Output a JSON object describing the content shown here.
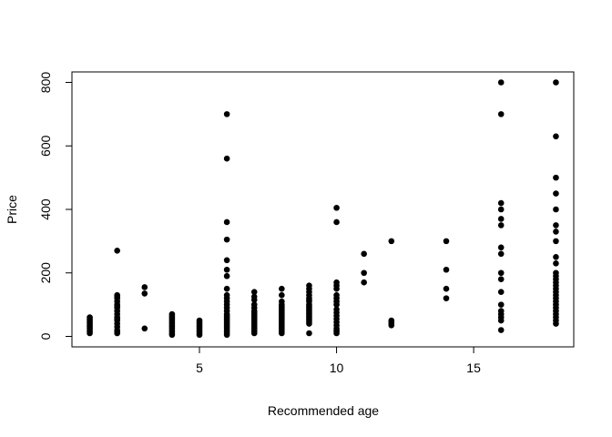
{
  "chart_data": {
    "type": "scatter",
    "title": "",
    "xlabel": "Recommended age",
    "ylabel": "Price",
    "xlim": [
      0.35,
      18.65
    ],
    "ylim": [
      -33,
      833
    ],
    "xticks": [
      5,
      10,
      15
    ],
    "yticks": [
      0,
      200,
      400,
      600,
      800
    ],
    "grid": false,
    "marker_color": "#000000",
    "points": [
      {
        "x": 1,
        "y": 10
      },
      {
        "x": 1,
        "y": 15
      },
      {
        "x": 1,
        "y": 20
      },
      {
        "x": 1,
        "y": 25
      },
      {
        "x": 1,
        "y": 30
      },
      {
        "x": 1,
        "y": 35
      },
      {
        "x": 1,
        "y": 40
      },
      {
        "x": 1,
        "y": 45
      },
      {
        "x": 1,
        "y": 50
      },
      {
        "x": 1,
        "y": 55
      },
      {
        "x": 1,
        "y": 60
      },
      {
        "x": 2,
        "y": 10
      },
      {
        "x": 2,
        "y": 15
      },
      {
        "x": 2,
        "y": 20
      },
      {
        "x": 2,
        "y": 30
      },
      {
        "x": 2,
        "y": 40
      },
      {
        "x": 2,
        "y": 50
      },
      {
        "x": 2,
        "y": 55
      },
      {
        "x": 2,
        "y": 60
      },
      {
        "x": 2,
        "y": 70
      },
      {
        "x": 2,
        "y": 80
      },
      {
        "x": 2,
        "y": 90
      },
      {
        "x": 2,
        "y": 95
      },
      {
        "x": 2,
        "y": 100
      },
      {
        "x": 2,
        "y": 110
      },
      {
        "x": 2,
        "y": 120
      },
      {
        "x": 2,
        "y": 125
      },
      {
        "x": 2,
        "y": 130
      },
      {
        "x": 2,
        "y": 270
      },
      {
        "x": 3,
        "y": 25
      },
      {
        "x": 3,
        "y": 135
      },
      {
        "x": 3,
        "y": 155
      },
      {
        "x": 4,
        "y": 5
      },
      {
        "x": 4,
        "y": 10
      },
      {
        "x": 4,
        "y": 15
      },
      {
        "x": 4,
        "y": 20
      },
      {
        "x": 4,
        "y": 25
      },
      {
        "x": 4,
        "y": 30
      },
      {
        "x": 4,
        "y": 35
      },
      {
        "x": 4,
        "y": 40
      },
      {
        "x": 4,
        "y": 45
      },
      {
        "x": 4,
        "y": 50
      },
      {
        "x": 4,
        "y": 55
      },
      {
        "x": 4,
        "y": 60
      },
      {
        "x": 4,
        "y": 65
      },
      {
        "x": 4,
        "y": 70
      },
      {
        "x": 5,
        "y": 5
      },
      {
        "x": 5,
        "y": 10
      },
      {
        "x": 5,
        "y": 15
      },
      {
        "x": 5,
        "y": 20
      },
      {
        "x": 5,
        "y": 25
      },
      {
        "x": 5,
        "y": 30
      },
      {
        "x": 5,
        "y": 35
      },
      {
        "x": 5,
        "y": 40
      },
      {
        "x": 5,
        "y": 45
      },
      {
        "x": 5,
        "y": 50
      },
      {
        "x": 6,
        "y": 5
      },
      {
        "x": 6,
        "y": 10
      },
      {
        "x": 6,
        "y": 15
      },
      {
        "x": 6,
        "y": 20
      },
      {
        "x": 6,
        "y": 25
      },
      {
        "x": 6,
        "y": 30
      },
      {
        "x": 6,
        "y": 35
      },
      {
        "x": 6,
        "y": 40
      },
      {
        "x": 6,
        "y": 45
      },
      {
        "x": 6,
        "y": 50
      },
      {
        "x": 6,
        "y": 55
      },
      {
        "x": 6,
        "y": 60
      },
      {
        "x": 6,
        "y": 65
      },
      {
        "x": 6,
        "y": 70
      },
      {
        "x": 6,
        "y": 80
      },
      {
        "x": 6,
        "y": 90
      },
      {
        "x": 6,
        "y": 100
      },
      {
        "x": 6,
        "y": 110
      },
      {
        "x": 6,
        "y": 120
      },
      {
        "x": 6,
        "y": 130
      },
      {
        "x": 6,
        "y": 150
      },
      {
        "x": 6,
        "y": 190
      },
      {
        "x": 6,
        "y": 210
      },
      {
        "x": 6,
        "y": 240
      },
      {
        "x": 6,
        "y": 305
      },
      {
        "x": 6,
        "y": 360
      },
      {
        "x": 6,
        "y": 560
      },
      {
        "x": 6,
        "y": 700
      },
      {
        "x": 7,
        "y": 10
      },
      {
        "x": 7,
        "y": 15
      },
      {
        "x": 7,
        "y": 20
      },
      {
        "x": 7,
        "y": 25
      },
      {
        "x": 7,
        "y": 30
      },
      {
        "x": 7,
        "y": 35
      },
      {
        "x": 7,
        "y": 40
      },
      {
        "x": 7,
        "y": 45
      },
      {
        "x": 7,
        "y": 50
      },
      {
        "x": 7,
        "y": 55
      },
      {
        "x": 7,
        "y": 60
      },
      {
        "x": 7,
        "y": 65
      },
      {
        "x": 7,
        "y": 70
      },
      {
        "x": 7,
        "y": 75
      },
      {
        "x": 7,
        "y": 80
      },
      {
        "x": 7,
        "y": 90
      },
      {
        "x": 7,
        "y": 100
      },
      {
        "x": 7,
        "y": 115
      },
      {
        "x": 7,
        "y": 125
      },
      {
        "x": 7,
        "y": 140
      },
      {
        "x": 8,
        "y": 10
      },
      {
        "x": 8,
        "y": 15
      },
      {
        "x": 8,
        "y": 20
      },
      {
        "x": 8,
        "y": 25
      },
      {
        "x": 8,
        "y": 30
      },
      {
        "x": 8,
        "y": 35
      },
      {
        "x": 8,
        "y": 40
      },
      {
        "x": 8,
        "y": 45
      },
      {
        "x": 8,
        "y": 50
      },
      {
        "x": 8,
        "y": 55
      },
      {
        "x": 8,
        "y": 60
      },
      {
        "x": 8,
        "y": 65
      },
      {
        "x": 8,
        "y": 70
      },
      {
        "x": 8,
        "y": 75
      },
      {
        "x": 8,
        "y": 80
      },
      {
        "x": 8,
        "y": 85
      },
      {
        "x": 8,
        "y": 90
      },
      {
        "x": 8,
        "y": 95
      },
      {
        "x": 8,
        "y": 100
      },
      {
        "x": 8,
        "y": 110
      },
      {
        "x": 8,
        "y": 130
      },
      {
        "x": 8,
        "y": 150
      },
      {
        "x": 9,
        "y": 10
      },
      {
        "x": 9,
        "y": 40
      },
      {
        "x": 9,
        "y": 45
      },
      {
        "x": 9,
        "y": 50
      },
      {
        "x": 9,
        "y": 55
      },
      {
        "x": 9,
        "y": 60
      },
      {
        "x": 9,
        "y": 65
      },
      {
        "x": 9,
        "y": 70
      },
      {
        "x": 9,
        "y": 75
      },
      {
        "x": 9,
        "y": 80
      },
      {
        "x": 9,
        "y": 85
      },
      {
        "x": 9,
        "y": 90
      },
      {
        "x": 9,
        "y": 95
      },
      {
        "x": 9,
        "y": 100
      },
      {
        "x": 9,
        "y": 110
      },
      {
        "x": 9,
        "y": 115
      },
      {
        "x": 9,
        "y": 120
      },
      {
        "x": 9,
        "y": 130
      },
      {
        "x": 9,
        "y": 140
      },
      {
        "x": 9,
        "y": 150
      },
      {
        "x": 9,
        "y": 160
      },
      {
        "x": 10,
        "y": 10
      },
      {
        "x": 10,
        "y": 15
      },
      {
        "x": 10,
        "y": 20
      },
      {
        "x": 10,
        "y": 25
      },
      {
        "x": 10,
        "y": 35
      },
      {
        "x": 10,
        "y": 45
      },
      {
        "x": 10,
        "y": 55
      },
      {
        "x": 10,
        "y": 65
      },
      {
        "x": 10,
        "y": 75
      },
      {
        "x": 10,
        "y": 85
      },
      {
        "x": 10,
        "y": 100
      },
      {
        "x": 10,
        "y": 110
      },
      {
        "x": 10,
        "y": 120
      },
      {
        "x": 10,
        "y": 130
      },
      {
        "x": 10,
        "y": 150
      },
      {
        "x": 10,
        "y": 160
      },
      {
        "x": 10,
        "y": 170
      },
      {
        "x": 10,
        "y": 360
      },
      {
        "x": 10,
        "y": 405
      },
      {
        "x": 11,
        "y": 170
      },
      {
        "x": 11,
        "y": 200
      },
      {
        "x": 11,
        "y": 260
      },
      {
        "x": 12,
        "y": 35
      },
      {
        "x": 12,
        "y": 40
      },
      {
        "x": 12,
        "y": 45
      },
      {
        "x": 12,
        "y": 50
      },
      {
        "x": 12,
        "y": 300
      },
      {
        "x": 14,
        "y": 120
      },
      {
        "x": 14,
        "y": 150
      },
      {
        "x": 14,
        "y": 210
      },
      {
        "x": 14,
        "y": 300
      },
      {
        "x": 16,
        "y": 20
      },
      {
        "x": 16,
        "y": 50
      },
      {
        "x": 16,
        "y": 60
      },
      {
        "x": 16,
        "y": 70
      },
      {
        "x": 16,
        "y": 80
      },
      {
        "x": 16,
        "y": 100
      },
      {
        "x": 16,
        "y": 140
      },
      {
        "x": 16,
        "y": 180
      },
      {
        "x": 16,
        "y": 200
      },
      {
        "x": 16,
        "y": 260
      },
      {
        "x": 16,
        "y": 280
      },
      {
        "x": 16,
        "y": 350
      },
      {
        "x": 16,
        "y": 370
      },
      {
        "x": 16,
        "y": 400
      },
      {
        "x": 16,
        "y": 420
      },
      {
        "x": 16,
        "y": 700
      },
      {
        "x": 16,
        "y": 800
      },
      {
        "x": 18,
        "y": 40
      },
      {
        "x": 18,
        "y": 50
      },
      {
        "x": 18,
        "y": 60
      },
      {
        "x": 18,
        "y": 70
      },
      {
        "x": 18,
        "y": 80
      },
      {
        "x": 18,
        "y": 90
      },
      {
        "x": 18,
        "y": 100
      },
      {
        "x": 18,
        "y": 110
      },
      {
        "x": 18,
        "y": 120
      },
      {
        "x": 18,
        "y": 130
      },
      {
        "x": 18,
        "y": 140
      },
      {
        "x": 18,
        "y": 150
      },
      {
        "x": 18,
        "y": 160
      },
      {
        "x": 18,
        "y": 170
      },
      {
        "x": 18,
        "y": 180
      },
      {
        "x": 18,
        "y": 190
      },
      {
        "x": 18,
        "y": 200
      },
      {
        "x": 18,
        "y": 230
      },
      {
        "x": 18,
        "y": 250
      },
      {
        "x": 18,
        "y": 300
      },
      {
        "x": 18,
        "y": 330
      },
      {
        "x": 18,
        "y": 350
      },
      {
        "x": 18,
        "y": 400
      },
      {
        "x": 18,
        "y": 450
      },
      {
        "x": 18,
        "y": 500
      },
      {
        "x": 18,
        "y": 630
      },
      {
        "x": 18,
        "y": 800
      }
    ]
  }
}
